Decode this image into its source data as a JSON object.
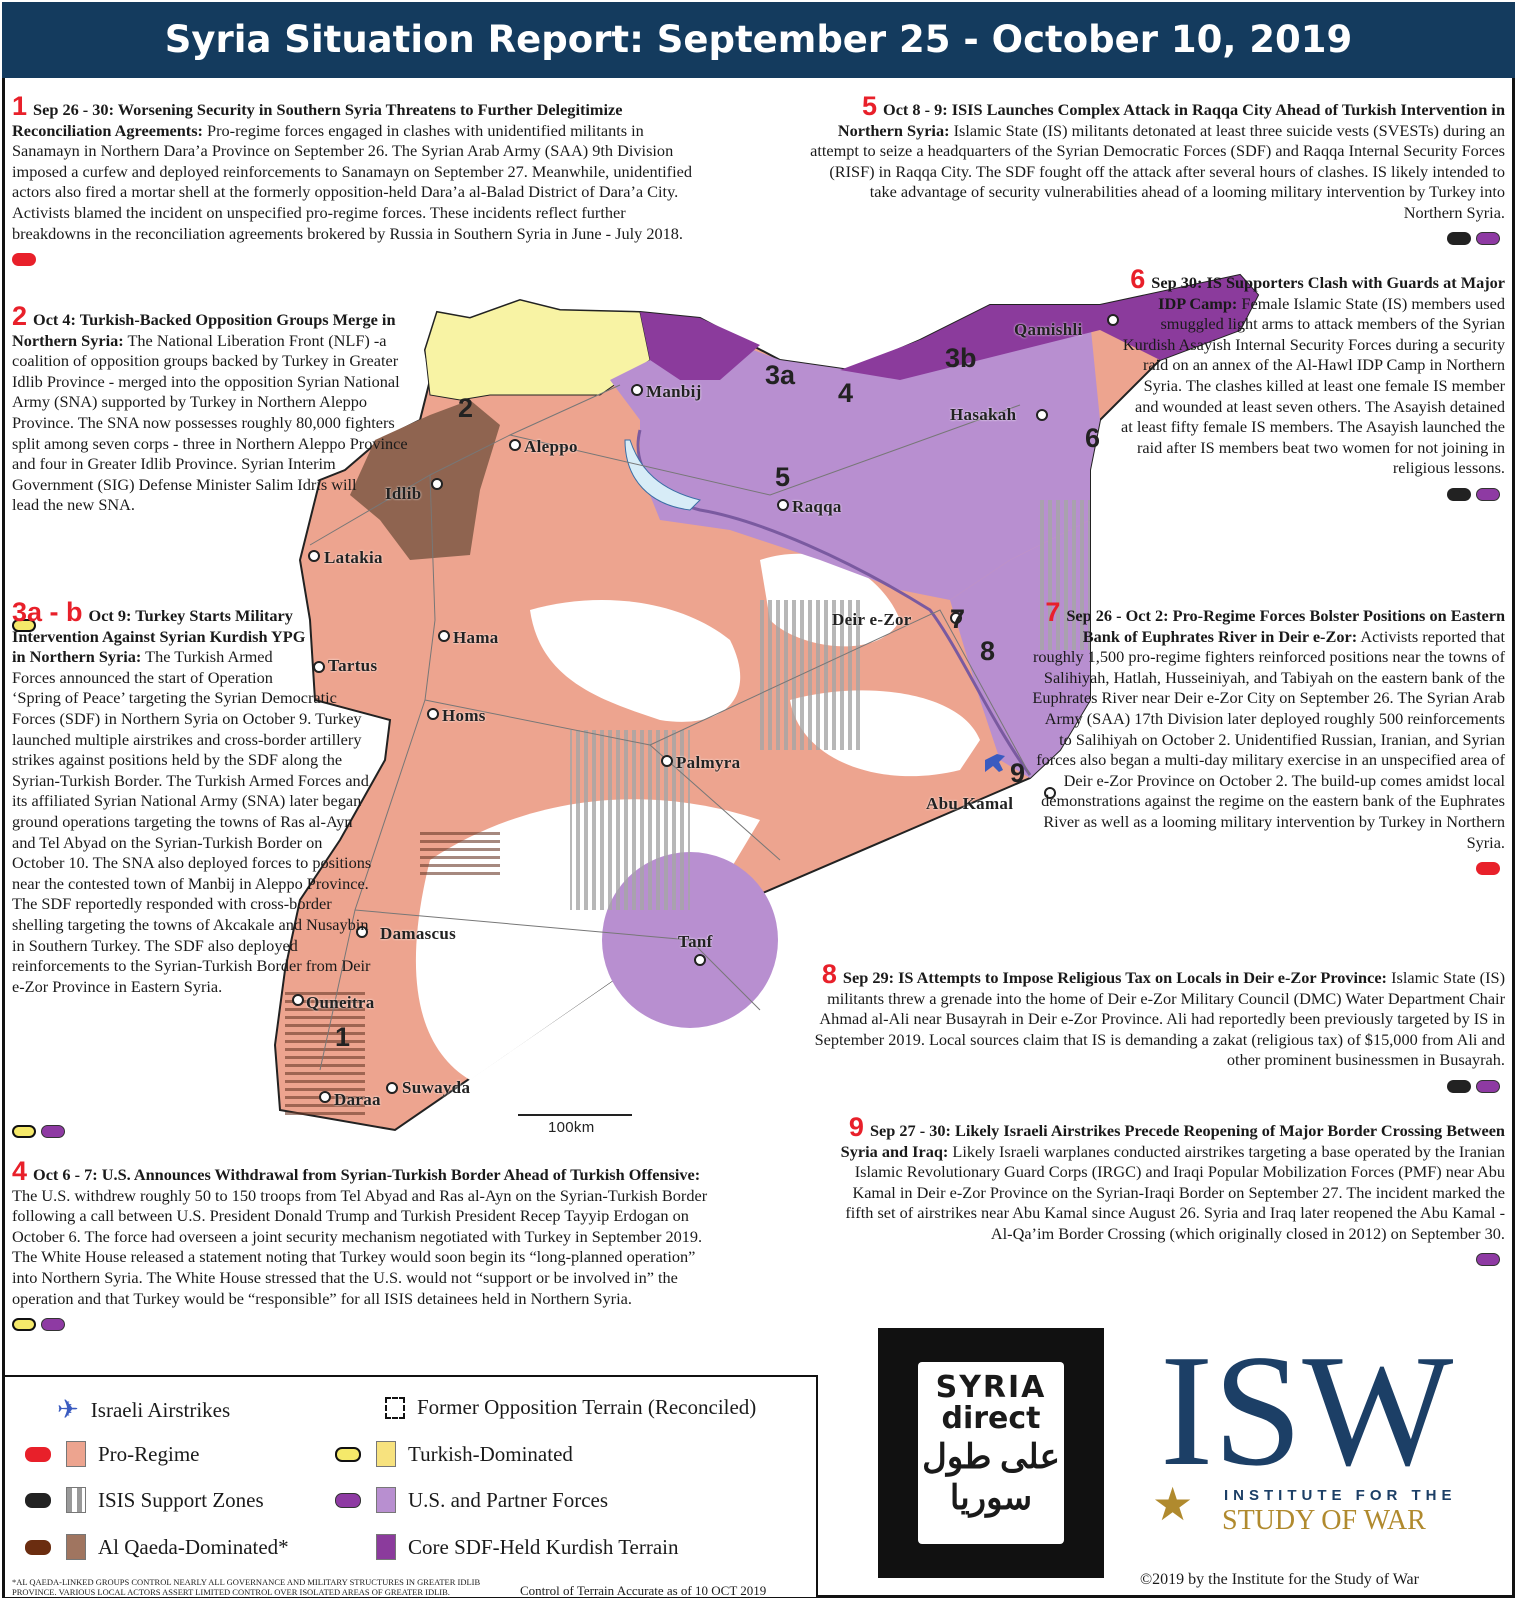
{
  "header": {
    "title": "Syria Situation Report: September 25 - October 10, 2019"
  },
  "events": [
    {
      "num": "1",
      "head": "Sep 26 - 30: Worsening Security in Southern Syria Threatens to Further Delegitimize Reconciliation Agreements:",
      "body": "Pro-regime forces engaged in clashes with unidentified militants in Sanamayn in Northern Dara’a Province on September 26. The Syrian Arab Army (SAA) 9th Division imposed a curfew and deployed reinforcements to Sanamayn on September 27. Meanwhile, unidentified actors also fired a mortar shell at the formerly opposition-held Dara’a al-Balad District of Dara’a City. Activists blamed the incident on unspecified pro-regime forces. These incidents reflect further breakdowns in the reconciliation agreements brokered by Russia in Southern Syria in June - July 2018."
    },
    {
      "num": "2",
      "head": "Oct 4: Turkish-Backed Opposition Groups Merge in Northern Syria:",
      "body": "The National Liberation Front (NLF) -a coalition of opposition groups backed by Turkey in Greater Idlib Province - merged into the opposition Syrian National Army (SNA) supported by Turkey in Northern Aleppo Province. The SNA now possesses roughly 80,000 fighters split among seven corps - three in Northern Aleppo Province and four in Greater Idlib Province. Syrian Interim Government (SIG) Defense Minister Salim Idris will lead the new SNA."
    },
    {
      "num": "3a - b",
      "head": "Oct 9: Turkey Starts Military Intervention Against Syrian Kurdish YPG in Northern Syria:",
      "body": "The Turkish Armed Forces announced the start of Operation ‘Spring of Peace’ targeting the Syrian Democratic Forces (SDF) in Northern Syria on October 9. Turkey launched multiple airstrikes and cross-border artillery strikes against positions held by the SDF along the Syrian-Turkish Border. The Turkish Armed Forces and its affiliated Syrian National Army (SNA) later began ground operations targeting the towns of Ras al-Ayn and Tel Abyad on the Syrian-Turkish Border on October 10. The SNA also deployed forces to positions near the contested town of Manbij in Aleppo Province. The SDF reportedly responded with cross-border shelling targeting the towns of Akcakale and Nusaybin in Southern Turkey. The SDF also deployed reinforcements to the Syrian-Turkish Border from Deir e-Zor Province in Eastern Syria."
    },
    {
      "num": "4",
      "head": "Oct 6 - 7: U.S. Announces Withdrawal from Syrian-Turkish Border Ahead of Turkish Offensive:",
      "body": "The U.S. withdrew roughly 50 to 150 troops from Tel Abyad and Ras al-Ayn on the Syrian-Turkish Border following a call between U.S. President Donald Trump and Turkish President Recep Tayyip Erdogan on October 6. The force had overseen a joint security mechanism negotiated with Turkey in September 2019. The White House released a statement noting that Turkey would soon begin its “long-planned operation” into Northern Syria. The White House stressed that the U.S. would not “support or be involved in” the operation and that Turkey would be “responsible” for all ISIS detainees held in Northern Syria."
    },
    {
      "num": "5",
      "head": "Oct 8 - 9: ISIS Launches Complex Attack in Raqqa City Ahead of Turkish Intervention in Northern Syria:",
      "body": "Islamic State (IS) militants detonated at least three suicide vests (SVESTs) during an attempt to seize a headquarters of the Syrian Democratic Forces (SDF) and Raqqa Internal Security Forces (RISF) in Raqqa City. The SDF fought off the attack after several hours of clashes. IS likely intended to take advantage of security vulnerabilities ahead of a looming military intervention by Turkey into Northern Syria."
    },
    {
      "num": "6",
      "head": "Sep 30: IS Supporters Clash with Guards at Major IDP Camp:",
      "body": "Female Islamic State (IS) members used smuggled light arms to attack members of the Syrian Kurdish Asayish Internal Security Forces during a security raid on an annex of the Al-Hawl IDP Camp in Northern Syria. The clashes killed at least one female IS member and wounded at least seven others. The Asayish detained at least fifty female IS members. The Asayish launched the raid after IS members beat two women for not joining in religious lessons."
    },
    {
      "num": "7",
      "head": "Sep 26 - Oct 2: Pro-Regime Forces Bolster Positions on Eastern Bank of Euphrates River in Deir e-Zor:",
      "body": "Activists reported that roughly 1,500 pro-regime fighters reinforced positions near the towns of Salihiyah, Hatlah, Husseiniyah, and Tabiyah on the eastern bank of the Euphrates River near Deir e-Zor City on September 26. The Syrian Arab Army (SAA) 17th Division later deployed roughly 500 reinforcements to Salihiyah on October 2. Unidentified Russian, Iranian, and Syrian forces also began a multi-day military exercise in an unspecified area of Deir e-Zor Province on October 2. The build-up comes amidst local demonstrations against the regime on the eastern bank of the Euphrates River as well as a looming military intervention by Turkey in Northern Syria."
    },
    {
      "num": "8",
      "head": "Sep 29: IS Attempts to Impose Religious Tax on Locals in Deir e-Zor Province:",
      "body": "Islamic State (IS) militants threw a grenade into the home of Deir e-Zor Military Council (DMC) Water Department Chair Ahmad al-Ali near Busayrah in Deir e-Zor Province. Ali had reportedly been previously targeted by IS in September 2019. Local sources claim that IS is demanding a zakat (religious tax) of $15,000 from Ali and other prominent businessmen in Busayrah."
    },
    {
      "num": "9",
      "head": "Sep 27 - 30: Likely Israeli Airstrikes Precede Reopening of Major Border Crossing Between Syria and Iraq:",
      "body": "Likely Israeli warplanes conducted airstrikes targeting a base operated by the Iranian Islamic Revolutionary Guard Corps (IRGC) and Iraqi Popular Mobilization Forces (PMF) near Abu Kamal in Deir e-Zor Province on the Syrian-Iraqi Border on September 27. The incident marked the fifth set of airstrikes near Abu Kamal since August 26. Syria and Iraq later reopened the Abu Kamal - Al-Qa’im Border Crossing (which originally closed in 2012) on September 30."
    }
  ],
  "event_markers": {
    "1": [
      "red"
    ],
    "2": [
      "yellow"
    ],
    "3a - b": [
      "yellow",
      "purple"
    ],
    "4": [
      "yellow",
      "purple"
    ],
    "5": [
      "black",
      "purple"
    ],
    "6": [
      "black",
      "purple"
    ],
    "7": [
      "red"
    ],
    "8": [
      "black",
      "purple"
    ],
    "9": [
      "purple"
    ]
  },
  "map": {
    "cities": [
      "Qamishli",
      "Manbij",
      "Hasakah",
      "Aleppo",
      "Idlib",
      "Raqqa",
      "Latakia",
      "Deir e-Zor",
      "Hama",
      "Tartus",
      "Homs",
      "Palmyra",
      "Abu Kamal",
      "Damascus",
      "Tanf",
      "Quneitra",
      "Suwayda",
      "Daraa"
    ],
    "event_labels": [
      "1",
      "2",
      "3a",
      "3b",
      "4",
      "5",
      "6",
      "7",
      "8",
      "9"
    ],
    "scale": "100km",
    "colors": {
      "pro_regime": "#eda48f",
      "turkish": "#f8f3a4",
      "us_partner": "#b88fd0",
      "core_sdf": "#8b3b9c",
      "al_qaeda": "#8f6450",
      "isis": "#9a9a9a"
    }
  },
  "legend": {
    "items": [
      {
        "label": "Israeli Airstrikes",
        "icon": "jet-icon"
      },
      {
        "label": "Former Opposition Terrain (Reconciled)",
        "icon": "dashed-box-icon"
      },
      {
        "label": "Pro-Regime",
        "dot": "#e8202a",
        "swatch": "#eda48f"
      },
      {
        "label": "Turkish-Dominated",
        "dot": "#f5e96a",
        "swatch": "#f7e27e"
      },
      {
        "label": "ISIS Support Zones",
        "dot": "#222222",
        "swatch": "striped"
      },
      {
        "label": "U.S. and Partner Forces",
        "dot": "#8e3aa3",
        "swatch": "#b88fd0"
      },
      {
        "label": "Al Qaeda-Dominated*",
        "dot": "#6b2d10",
        "swatch": "#a07560"
      },
      {
        "label": "Core SDF-Held Kurdish Terrain",
        "swatch": "#8b3b9c"
      }
    ],
    "footnote": "*Al Qaeda-linked groups control nearly all governance and military structures in Greater Idlib Province. Various local actors assert limited control over isolated areas of Greater Idlib.",
    "control_note": "Control of Terrain Accurate as of 10 OCT 2019"
  },
  "logos": {
    "syria_direct": [
      "SYRIA",
      "direct",
      "على طول",
      "سوريا"
    ],
    "isw": {
      "mark": "ISW",
      "line1": "INSTITUTE FOR THE",
      "line2": "STUDY OF WAR"
    }
  },
  "copyright": "©2019 by the Institute for the Study of War"
}
